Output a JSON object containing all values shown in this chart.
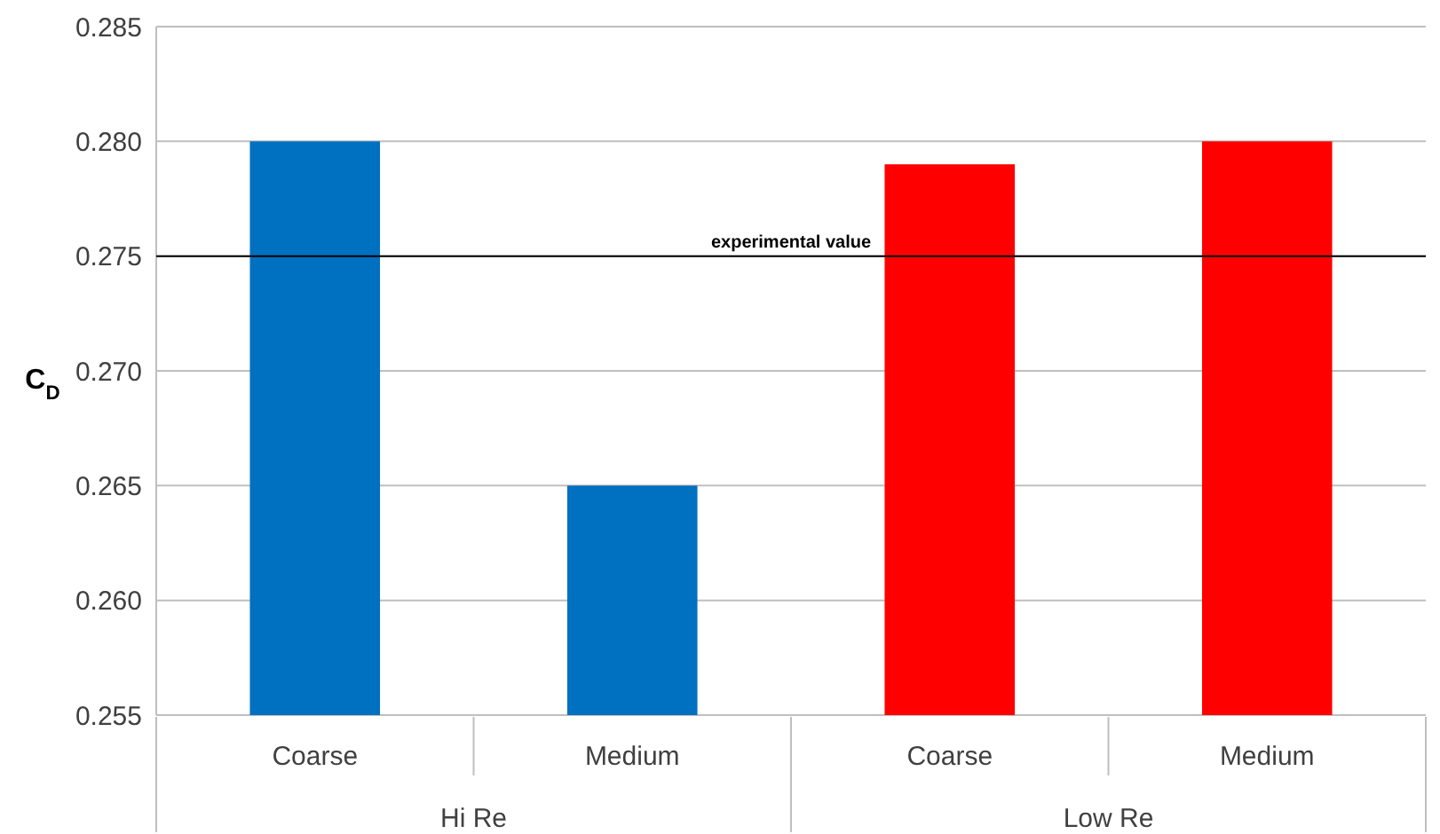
{
  "chart_data": {
    "type": "bar",
    "ylabel": "C$_{D}$",
    "categories": [
      "Coarse",
      "Medium",
      "Coarse",
      "Medium"
    ],
    "values": [
      0.28,
      0.265,
      0.279,
      0.28
    ],
    "colors": [
      "#0070c0",
      "#0070c0",
      "#ff0000",
      "#ff0000"
    ],
    "annotations": [
      "Hi Re",
      "Low Re"
    ],
    "ylim": [
      0.255,
      0.285
    ],
    "yticks": [
      {
        "value": 0.255,
        "label": "0.255"
      },
      {
        "value": 0.26,
        "label": "0.260"
      },
      {
        "value": 0.265,
        "label": "0.265"
      },
      {
        "value": 0.27,
        "label": "0.270"
      },
      {
        "value": 0.275,
        "label": "0.275"
      },
      {
        "value": 0.28,
        "label": "0.280"
      },
      {
        "value": 0.285,
        "label": "0.285"
      }
    ],
    "grid": "y",
    "ref_lines": [
      {
        "axis": "y",
        "value": 0.275,
        "label": "experimental value",
        "color": "#000000"
      }
    ]
  }
}
